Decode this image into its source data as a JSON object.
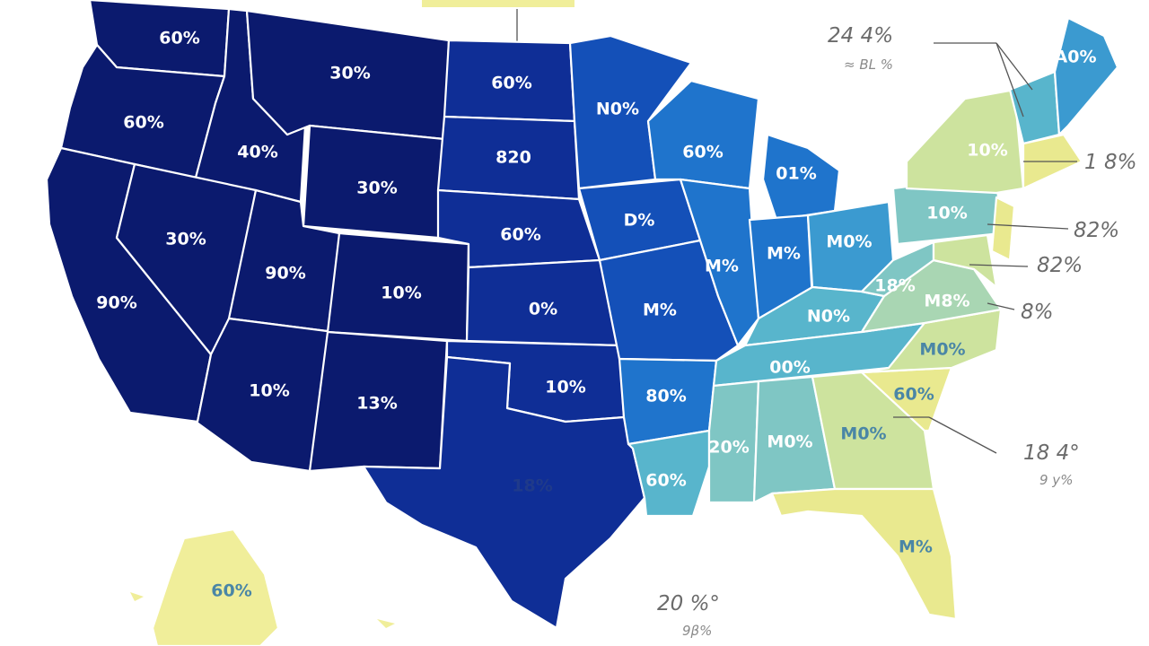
{
  "colors": {
    "navy": "#0b1a6e",
    "royal": "#0f2e96",
    "blue": "#1450b8",
    "azure": "#1f74cc",
    "steel": "#3b9ad0",
    "teal": "#58b5cc",
    "sea": "#7fc6c4",
    "mint": "#a9d6b3",
    "yellow_green": "#cde39e",
    "yellow": "#e9e98f",
    "pale_yellow": "#f0ee9a"
  },
  "states": {
    "WA": "60%",
    "OR": "60%",
    "CA": "90%",
    "ID": "40%",
    "NV": "30%",
    "MT": "30%",
    "WY": "30%",
    "UT": "90%",
    "AZ": "10%",
    "CO": "10%",
    "NM": "13%",
    "ND": "60%",
    "SD": "820",
    "NE": "60%",
    "KS": "0%",
    "OK": "10%",
    "TX": "18%",
    "MN": "N0%",
    "IA": "D%",
    "MO": "M%",
    "AR": "80%",
    "LA": "60%",
    "WI": "60%",
    "IL": "M%",
    "MI": "01%",
    "IN": "M%",
    "OH": "M0%",
    "KY": "N0%",
    "TN": "00%",
    "MS": "20%",
    "AL": "M0%",
    "GA": "M0%",
    "FL": "M%",
    "SC": "60%",
    "NC": "M0%",
    "VA": "M8%",
    "WV": "18%",
    "PA": "10%",
    "NY": "10%",
    "ME": "A0%",
    "AK": "60%"
  },
  "callouts": {
    "top_right_big": "24 4%",
    "top_right_small": "≈ BL %",
    "ne_value": "1 8%",
    "mid_atlantic_1": "82%",
    "mid_atlantic_2": "82%",
    "mid_atlantic_3": "8%",
    "se_big": "18 4°",
    "se_small": "9 y%",
    "bottom_big": "20 %°",
    "bottom_small": "9β%"
  }
}
